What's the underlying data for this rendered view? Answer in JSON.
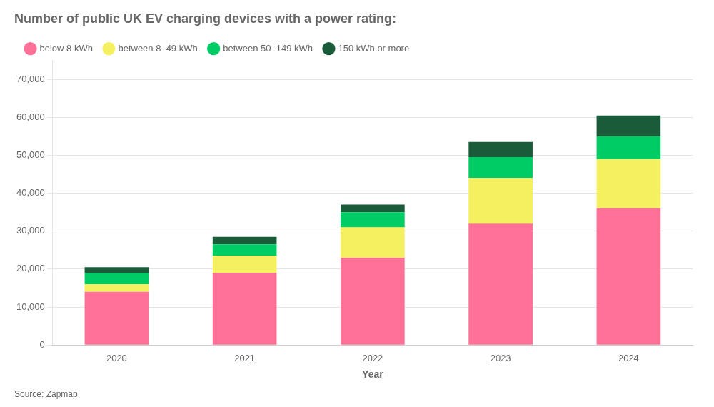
{
  "chart_data": {
    "type": "bar",
    "title": "Number of public UK EV charging devices with a power rating:",
    "xlabel": "Year",
    "source": "Source: Zapmap",
    "categories": [
      "2020",
      "2021",
      "2022",
      "2023",
      "2024"
    ],
    "series": [
      {
        "name": "below 8 kWh",
        "color": "#FF7096",
        "values": [
          14000,
          19000,
          23000,
          32000,
          36000
        ]
      },
      {
        "name": "between 8–49 kWh",
        "color": "#F5F060",
        "values": [
          2000,
          4500,
          8000,
          12000,
          13000
        ]
      },
      {
        "name": "between 50–149 kWh",
        "color": "#00CC66",
        "values": [
          3000,
          3000,
          4000,
          5500,
          6000
        ]
      },
      {
        "name": "150 kWh or more",
        "color": "#1A5C3A",
        "values": [
          1500,
          2000,
          2000,
          4000,
          5500
        ]
      }
    ],
    "stacked": true,
    "ylim": [
      0,
      75000
    ],
    "yticks": [
      0,
      {
        "value": 10000,
        "label": "10,000"
      },
      {
        "value": 20000,
        "label": "20,000"
      },
      {
        "value": 30000,
        "label": "30,000"
      },
      {
        "value": 40000,
        "label": "40,000"
      },
      {
        "value": 50000,
        "label": "50,000"
      },
      {
        "value": 60000,
        "label": "60,000"
      },
      {
        "value": 70000,
        "label": "70,000"
      }
    ],
    "grid": true,
    "legend": "top"
  }
}
